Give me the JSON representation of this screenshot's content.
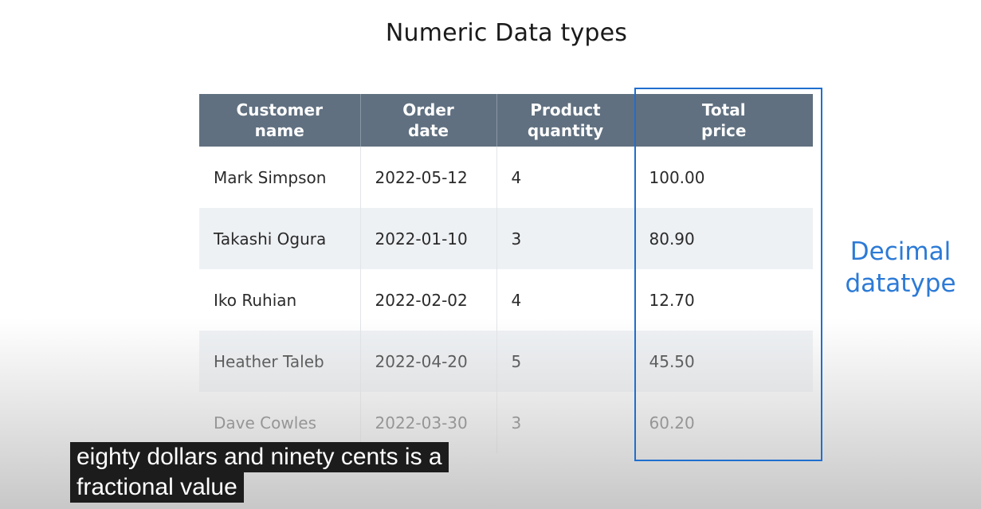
{
  "slide": {
    "title": "Numeric Data types"
  },
  "table": {
    "headers": [
      {
        "line1": "Customer",
        "line2": "name"
      },
      {
        "line1": "Order",
        "line2": "date"
      },
      {
        "line1": "Product",
        "line2": "quantity"
      },
      {
        "line1": "Total",
        "line2": "price"
      }
    ],
    "rows": [
      {
        "name": "Mark Simpson",
        "date": "2022-05-12",
        "quantity": "4",
        "price": "100.00"
      },
      {
        "name": "Takashi Ogura",
        "date": "2022-01-10",
        "quantity": "3",
        "price": "80.90"
      },
      {
        "name": "Iko Ruhian",
        "date": "2022-02-02",
        "quantity": "4",
        "price": "12.70"
      },
      {
        "name": "Heather Taleb",
        "date": "2022-04-20",
        "quantity": "5",
        "price": "45.50"
      },
      {
        "name": "Dave Cowles",
        "date": "2022-03-30",
        "quantity": "3",
        "price": "60.20"
      }
    ]
  },
  "annotation": {
    "line1": "Decimal",
    "line2": "datatype",
    "color": "#2c7ad6"
  },
  "caption": {
    "line1": "eighty dollars and ninety cents is a",
    "line2": "fractional value"
  },
  "colors": {
    "header_bg": "#607080",
    "highlight_border": "#1f6fcf",
    "row_alt_bg": "#eef1f4"
  }
}
